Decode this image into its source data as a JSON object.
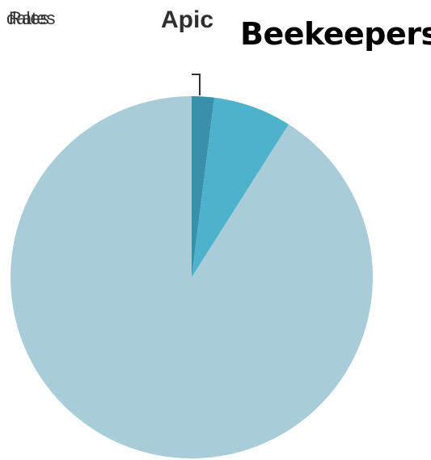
{
  "labels": {
    "overlap_a": "dales",
    "overlap_b": "Rates",
    "apic": "Apic",
    "title": "Beekeepers"
  },
  "chart_data": {
    "type": "pie",
    "title": "Beekeepers",
    "legend": "none",
    "start_angle_deg": 0,
    "direction": "clockwise",
    "slices": [
      {
        "value": 2,
        "color": "#3a8fab"
      },
      {
        "value": 7,
        "color": "#4fb2cc"
      },
      {
        "value": 91,
        "color": "#a8cdd9"
      }
    ]
  }
}
